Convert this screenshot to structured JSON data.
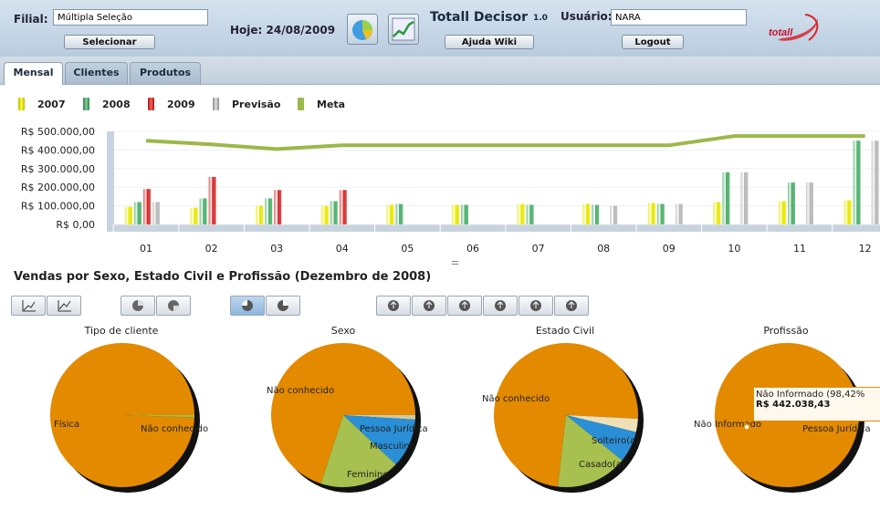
{
  "header": {
    "filial_label": "Filial:",
    "filial_value": "Múltipla Seleção",
    "select_button": "Selecionar",
    "date_text": "Hoje: 24/08/2009",
    "app_title": "Totall Decisor",
    "app_version": "1.0",
    "help_button": "Ajuda Wiki",
    "user_label": "Usuário:",
    "user_value": "NARA",
    "logout_button": "Logout",
    "logo_text": "totall"
  },
  "tabs": [
    {
      "label": "Mensal",
      "active": true
    },
    {
      "label": "Clientes",
      "active": false
    },
    {
      "label": "Produtos",
      "active": false
    }
  ],
  "legend": [
    {
      "label": "2007",
      "color": "#e8e800"
    },
    {
      "label": "2008",
      "color": "#4caf6a"
    },
    {
      "label": "2009",
      "color": "#d62b2b"
    },
    {
      "label": "Previsão",
      "color": "#b8b8b8"
    },
    {
      "label": "Meta",
      "color": "#9cb84a"
    }
  ],
  "chart_data": {
    "type": "bar",
    "categories": [
      "01",
      "02",
      "03",
      "04",
      "05",
      "06",
      "07",
      "08",
      "09",
      "10",
      "11",
      "12"
    ],
    "yticks": [
      "R$ 0,00",
      "R$ 100.000,00",
      "R$ 200.000,00",
      "R$ 300.000,00",
      "R$ 400.000,00",
      "R$ 500.000,00"
    ],
    "ylim": [
      0,
      500000
    ],
    "series": [
      {
        "name": "2007",
        "color": "#e8e800",
        "values": [
          95000,
          90000,
          100000,
          100000,
          105000,
          105000,
          110000,
          110000,
          115000,
          120000,
          125000,
          130000
        ]
      },
      {
        "name": "2008",
        "color": "#4caf6a",
        "values": [
          120000,
          140000,
          140000,
          125000,
          110000,
          105000,
          105000,
          105000,
          110000,
          280000,
          225000,
          450000
        ]
      },
      {
        "name": "2009",
        "color": "#d62b2b",
        "values": [
          190000,
          255000,
          185000,
          185000,
          null,
          null,
          null,
          null,
          null,
          null,
          null,
          null
        ]
      },
      {
        "name": "Previsão",
        "color": "#b8b8b8",
        "values": [
          120000,
          null,
          null,
          null,
          null,
          null,
          null,
          100000,
          110000,
          280000,
          225000,
          450000
        ]
      },
      {
        "name": "Meta",
        "color": "#9cb84a",
        "type": "line",
        "values": [
          450000,
          430000,
          405000,
          425000,
          425000,
          425000,
          425000,
          425000,
          425000,
          475000,
          475000,
          475000
        ]
      }
    ]
  },
  "section_title": "Vendas por Sexo, Estado Civil e Profissão (Dezembro de 2008)",
  "pies": [
    {
      "title": "Tipo de cliente",
      "slices": [
        {
          "label": "Física",
          "value": 99.5,
          "color": "#e38a00"
        },
        {
          "label": "Não conhecido",
          "value": 0.5,
          "color": "#9cc04a"
        }
      ]
    },
    {
      "title": "Sexo",
      "slices": [
        {
          "label": "Não conhecido",
          "value": 70,
          "color": "#e38a00"
        },
        {
          "label": "Pessoa Jurídica",
          "value": 1,
          "color": "#cfc9a0"
        },
        {
          "label": "Masculino",
          "value": 11,
          "color": "#2a8fd6"
        },
        {
          "label": "Feminino",
          "value": 18,
          "color": "#a7c04f"
        }
      ]
    },
    {
      "title": "Estado Civil",
      "slices": [
        {
          "label": "Não conhecido",
          "value": 74,
          "color": "#e38a00"
        },
        {
          "label": "",
          "value": 3,
          "color": "#efe0b8"
        },
        {
          "label": "Solteiro(a)",
          "value": 7,
          "color": "#2a8fd6"
        },
        {
          "label": "Casado(a)",
          "value": 16,
          "color": "#a7c04f"
        }
      ]
    },
    {
      "title": "Profissão",
      "slices": [
        {
          "label": "Não Informado",
          "value": 98.42,
          "color": "#e38a00"
        },
        {
          "label": "Pessoa Jurídica",
          "value": 1.58,
          "color": "#9cc04a"
        }
      ]
    }
  ],
  "tooltip": {
    "line1": "Não Informado (98,42%",
    "line2": "R$ 442.038,43"
  },
  "handle_glyph": "⚌"
}
